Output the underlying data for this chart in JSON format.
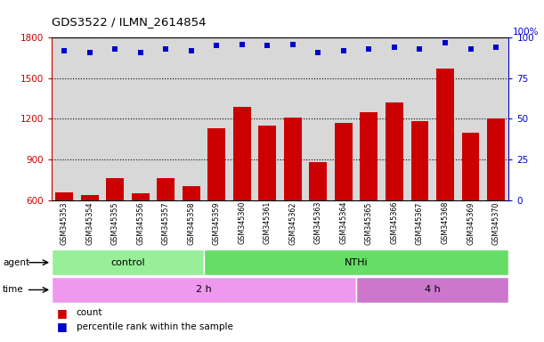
{
  "title": "GDS3522 / ILMN_2614854",
  "samples": [
    "GSM345353",
    "GSM345354",
    "GSM345355",
    "GSM345356",
    "GSM345357",
    "GSM345358",
    "GSM345359",
    "GSM345360",
    "GSM345361",
    "GSM345362",
    "GSM345363",
    "GSM345364",
    "GSM345365",
    "GSM345366",
    "GSM345367",
    "GSM345368",
    "GSM345369",
    "GSM345370"
  ],
  "counts": [
    660,
    635,
    760,
    650,
    760,
    700,
    1130,
    1290,
    1150,
    1210,
    880,
    1170,
    1250,
    1320,
    1180,
    1570,
    1100,
    1200
  ],
  "percentile_ranks": [
    92,
    91,
    93,
    91,
    93,
    92,
    95,
    96,
    95,
    96,
    91,
    92,
    93,
    94,
    93,
    97,
    93,
    94
  ],
  "bar_color": "#cc0000",
  "dot_color": "#0000cc",
  "ylim_left": [
    600,
    1800
  ],
  "ylim_right": [
    0,
    100
  ],
  "yticks_left": [
    600,
    900,
    1200,
    1500,
    1800
  ],
  "yticks_right": [
    0,
    25,
    50,
    75,
    100
  ],
  "grid_values": [
    900,
    1200,
    1500,
    1800
  ],
  "agent_groups": [
    {
      "label": "control",
      "start": 0,
      "end": 6,
      "color": "#99ee99"
    },
    {
      "label": "NTHi",
      "start": 6,
      "end": 18,
      "color": "#66dd66"
    }
  ],
  "time_groups": [
    {
      "label": "2 h",
      "start": 0,
      "end": 12,
      "color": "#ee99ee"
    },
    {
      "label": "4 h",
      "start": 12,
      "end": 18,
      "color": "#cc77cc"
    }
  ],
  "agent_label": "agent",
  "time_label": "time",
  "legend_count_label": "count",
  "legend_pct_label": "percentile rank within the sample",
  "bg_color": "#d8d8d8",
  "fig_bg_color": "#ffffff"
}
